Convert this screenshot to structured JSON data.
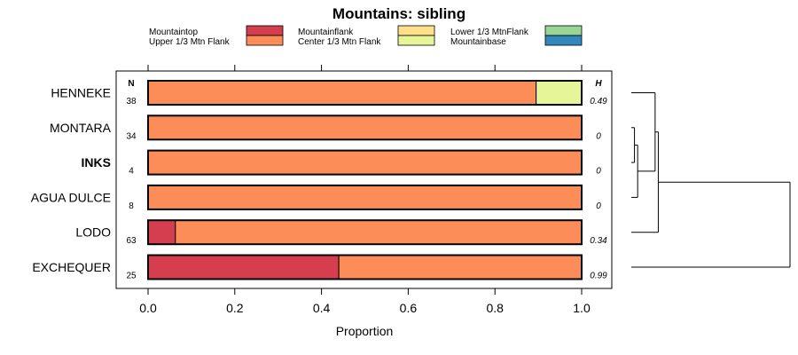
{
  "chart_data": {
    "type": "bar",
    "subtype": "stacked-horizontal-proportion",
    "title": "Mountains: sibling",
    "xlabel": "Proportion",
    "ylabel": "",
    "xlim": [
      0,
      1
    ],
    "xticks": [
      "0.0",
      "0.2",
      "0.4",
      "0.6",
      "0.8",
      "1.0"
    ],
    "n_header": "N",
    "h_header": "H",
    "legend": [
      {
        "label": "Mountaintop",
        "color": "#d53e4f"
      },
      {
        "label": "Upper 1/3 Mtn Flank",
        "color": "#fc8d59"
      },
      {
        "label": "Mountainflank",
        "color": "#fee08b"
      },
      {
        "label": "Center 1/3 Mtn Flank",
        "color": "#e6f598"
      },
      {
        "label": "Lower 1/3 MtnFlank",
        "color": "#99d594"
      },
      {
        "label": "Mountainbase",
        "color": "#3288bd"
      }
    ],
    "categories": [
      "HENNEKE",
      "MONTARA",
      "INKS",
      "AGUA DULCE",
      "LODO",
      "EXCHEQUER"
    ],
    "highlight_category": "INKS",
    "n_values": [
      "38",
      "34",
      "4",
      "8",
      "63",
      "25"
    ],
    "h_values": [
      "0.49",
      "0",
      "0",
      "0",
      "0.34",
      "0.99"
    ],
    "series": [
      {
        "name": "Mountaintop",
        "values": [
          0,
          0,
          0,
          0,
          0.063,
          0.44
        ]
      },
      {
        "name": "Upper 1/3 Mtn Flank",
        "values": [
          0.895,
          1.0,
          1.0,
          1.0,
          0.937,
          0.56
        ]
      },
      {
        "name": "Mountainflank",
        "values": [
          0,
          0,
          0,
          0,
          0,
          0
        ]
      },
      {
        "name": "Center 1/3 Mtn Flank",
        "values": [
          0.105,
          0,
          0,
          0,
          0,
          0
        ]
      },
      {
        "name": "Lower 1/3 MtnFlank",
        "values": [
          0,
          0,
          0,
          0,
          0,
          0
        ]
      },
      {
        "name": "Mountainbase",
        "values": [
          0,
          0,
          0,
          0,
          0,
          0
        ]
      }
    ],
    "dendrogram": {
      "merges": [
        {
          "left": "MONTARA",
          "right": "INKS",
          "height": 0.02
        },
        {
          "left": "MONTARA+INKS",
          "right": "AGUA DULCE",
          "height": 0.04
        },
        {
          "left": "HENNEKE",
          "right": "MONTARA+INKS+AGUA DULCE",
          "height": 0.15
        },
        {
          "left": "HENNEKE+MONTARA+INKS+AGUA DULCE",
          "right": "LODO",
          "height": 0.17
        },
        {
          "left": "ALL_OTHERS",
          "right": "EXCHEQUER",
          "height": 1.0
        }
      ]
    }
  }
}
